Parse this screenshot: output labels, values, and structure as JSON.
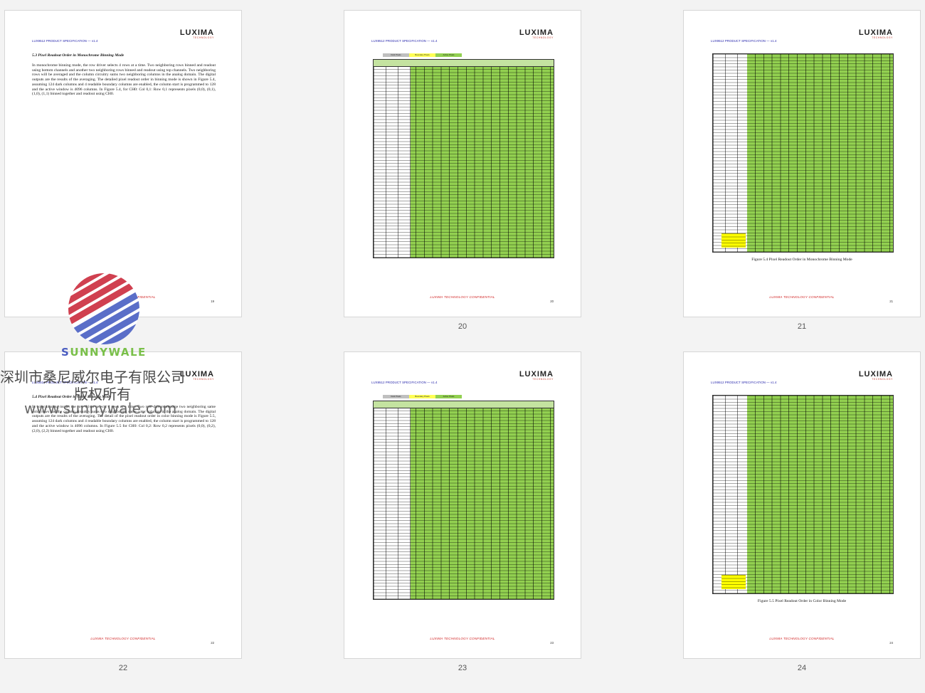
{
  "doc": {
    "header": "LUX9512 PRODUCT SPECIFICATION — v1.4",
    "logo_word": "LUXIMA",
    "logo_sub": "TECHNOLOGY",
    "confidential": "LUXIMA TECHNOLOGY CONFIDENTIAL"
  },
  "legend": {
    "dark": "Dark Pixels",
    "boundary": "Boundary Pixels",
    "active": "Active Pixels"
  },
  "pages": [
    {
      "number": "19",
      "title": "5.3 Pixel Readout Order in Monochrome Binning Mode",
      "body": "In monochrome binning mode, the row driver selects 4 rows at a time. Two neighboring rows binned and readout using bottom channels and another two neighboring rows binned and readout using top channels. Two neighboring rows will be averaged and the column circuitry sums two neighboring columns in the analog domain. The digital outputs are the results of the averaging. The detailed pixel readout order in binning mode is shown in Figure 5.4, assuming 124 dark columns and 4 readable boundary columns are enabled, the column start is programmed to 128 and the active window is 4096 columns. In Figure 5.4, for CH0: Col 0,1: Row 0,1 represents pixels (0,0), (0,1), (1,0), (1,1) binned together and readout using CH0."
    },
    {
      "number": "20",
      "thumb_label": "20"
    },
    {
      "number": "21",
      "thumb_label": "21",
      "caption": "Figure 5.4 Pixel Readout Order in Monochrome Binning Mode"
    },
    {
      "number": "22",
      "thumb_label": "22",
      "title": "5.4 Pixel Readout Order in Color Binning Mode",
      "body": "In color binning mode, the row driver selects 4 rows at a time. Two row drivers average two neighboring same color rows and the column circuitry sums two neighboring same color columns in the analog domain. The digital outputs are the results of the averaging. The detail of the pixel readout order in color binning mode is Figure 5.5, assuming 124 dark columns and 4 readable boundary columns are enabled, the column start is programmed to 128 and the active window is 4096 columns. In Figure 5.5 for CH0: Col 0,2: Row 0,2 represents pixels (0,0), (0,2), (2,0), (2,2) binned together and readout using CH0."
    },
    {
      "number": "23",
      "thumb_label": "23"
    },
    {
      "number": "24",
      "thumb_label": "24",
      "caption": "Figure 5.5 Pixel Readout Order in Color Binning Mode"
    }
  ],
  "watermark": {
    "brand": "UNNYWALE",
    "brand_initial": "S",
    "company": "深圳市桑尼威尔电子有限公司",
    "rights": "版权所有",
    "url": "www.sunnywale.com"
  }
}
